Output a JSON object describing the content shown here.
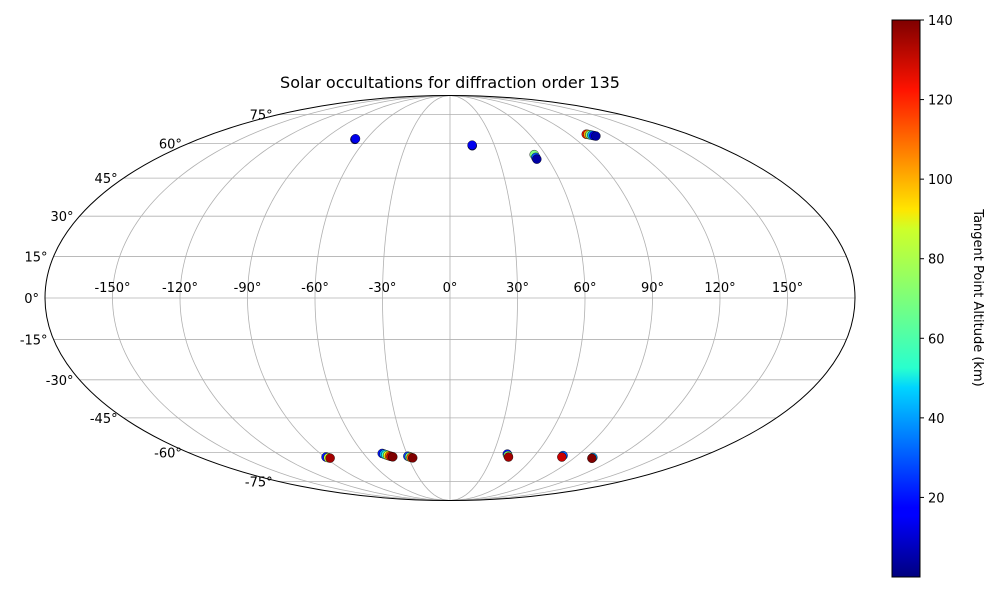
{
  "chart_data": {
    "type": "scatter",
    "projection": "mollweide",
    "title": "Solar occultations for diffraction order 135",
    "xlabel": "",
    "ylabel": "",
    "grid": true,
    "lon_tick_labels": [
      "-150°",
      "-120°",
      "-90°",
      "-60°",
      "-30°",
      "0°",
      "30°",
      "60°",
      "90°",
      "120°",
      "150°"
    ],
    "lon_ticks": [
      -150,
      -120,
      -90,
      -60,
      -30,
      0,
      30,
      60,
      90,
      120,
      150
    ],
    "lat_tick_labels": [
      "-75°",
      "-60°",
      "-45°",
      "-30°",
      "-15°",
      "0°",
      "15°",
      "30°",
      "45°",
      "60°",
      "75°"
    ],
    "lat_ticks": [
      -75,
      -60,
      -45,
      -30,
      -15,
      0,
      15,
      30,
      45,
      60,
      75
    ],
    "colorbar": {
      "label": "Tangent Point Altitude (km)",
      "colormap": "jet",
      "min": 0,
      "max": 140,
      "ticks": [
        20,
        40,
        60,
        80,
        100,
        120,
        140
      ],
      "tick_labels": [
        "20",
        "40",
        "60",
        "80",
        "100",
        "120",
        "140"
      ]
    },
    "points": [
      {
        "lon": -68,
        "lat": 62,
        "alt": 5
      },
      {
        "lon": -68,
        "lat": 62.3,
        "alt": 15
      },
      {
        "lon": 15,
        "lat": 59,
        "alt": 5
      },
      {
        "lon": 15,
        "lat": 59.3,
        "alt": 15
      },
      {
        "lon": 53,
        "lat": 55,
        "alt": 70
      },
      {
        "lon": 53,
        "lat": 53.8,
        "alt": 30
      },
      {
        "lon": 53,
        "lat": 53,
        "alt": 5
      },
      {
        "lon": 103,
        "lat": 64.5,
        "alt": 120
      },
      {
        "lon": 104,
        "lat": 64.4,
        "alt": 100
      },
      {
        "lon": 105,
        "lat": 64.2,
        "alt": 70
      },
      {
        "lon": 106,
        "lat": 64,
        "alt": 40
      },
      {
        "lon": 107,
        "lat": 63.8,
        "alt": 15
      },
      {
        "lon": 108,
        "lat": 63.6,
        "alt": 5
      },
      {
        "lon": -89,
        "lat": -62.2,
        "alt": 20
      },
      {
        "lon": -88,
        "lat": -62.5,
        "alt": 80
      },
      {
        "lon": -87,
        "lat": -62.7,
        "alt": 135
      },
      {
        "lon": -47,
        "lat": -60.5,
        "alt": 20
      },
      {
        "lon": -46,
        "lat": -60.8,
        "alt": 40
      },
      {
        "lon": -45,
        "lat": -61.1,
        "alt": 60
      },
      {
        "lon": -44,
        "lat": -61.4,
        "alt": 85
      },
      {
        "lon": -43,
        "lat": -61.7,
        "alt": 110
      },
      {
        "lon": -42,
        "lat": -61.9,
        "alt": 130
      },
      {
        "lon": -41,
        "lat": -62.1,
        "alt": 140
      },
      {
        "lon": -30,
        "lat": -61.8,
        "alt": 25
      },
      {
        "lon": -29,
        "lat": -62.1,
        "alt": 70
      },
      {
        "lon": -28,
        "lat": -62.4,
        "alt": 110
      },
      {
        "lon": -27,
        "lat": -62.6,
        "alt": 140
      },
      {
        "lon": 40,
        "lat": -60.8,
        "alt": 20
      },
      {
        "lon": 41,
        "lat": -61.5,
        "alt": 70
      },
      {
        "lon": 42,
        "lat": -62.2,
        "alt": 135
      },
      {
        "lon": 80,
        "lat": -61.5,
        "alt": 30
      },
      {
        "lon": 80.3,
        "lat": -62.2,
        "alt": 130
      },
      {
        "lon": 103,
        "lat": -62.4,
        "alt": 40
      },
      {
        "lon": 103.2,
        "lat": -62.8,
        "alt": 140
      }
    ]
  }
}
